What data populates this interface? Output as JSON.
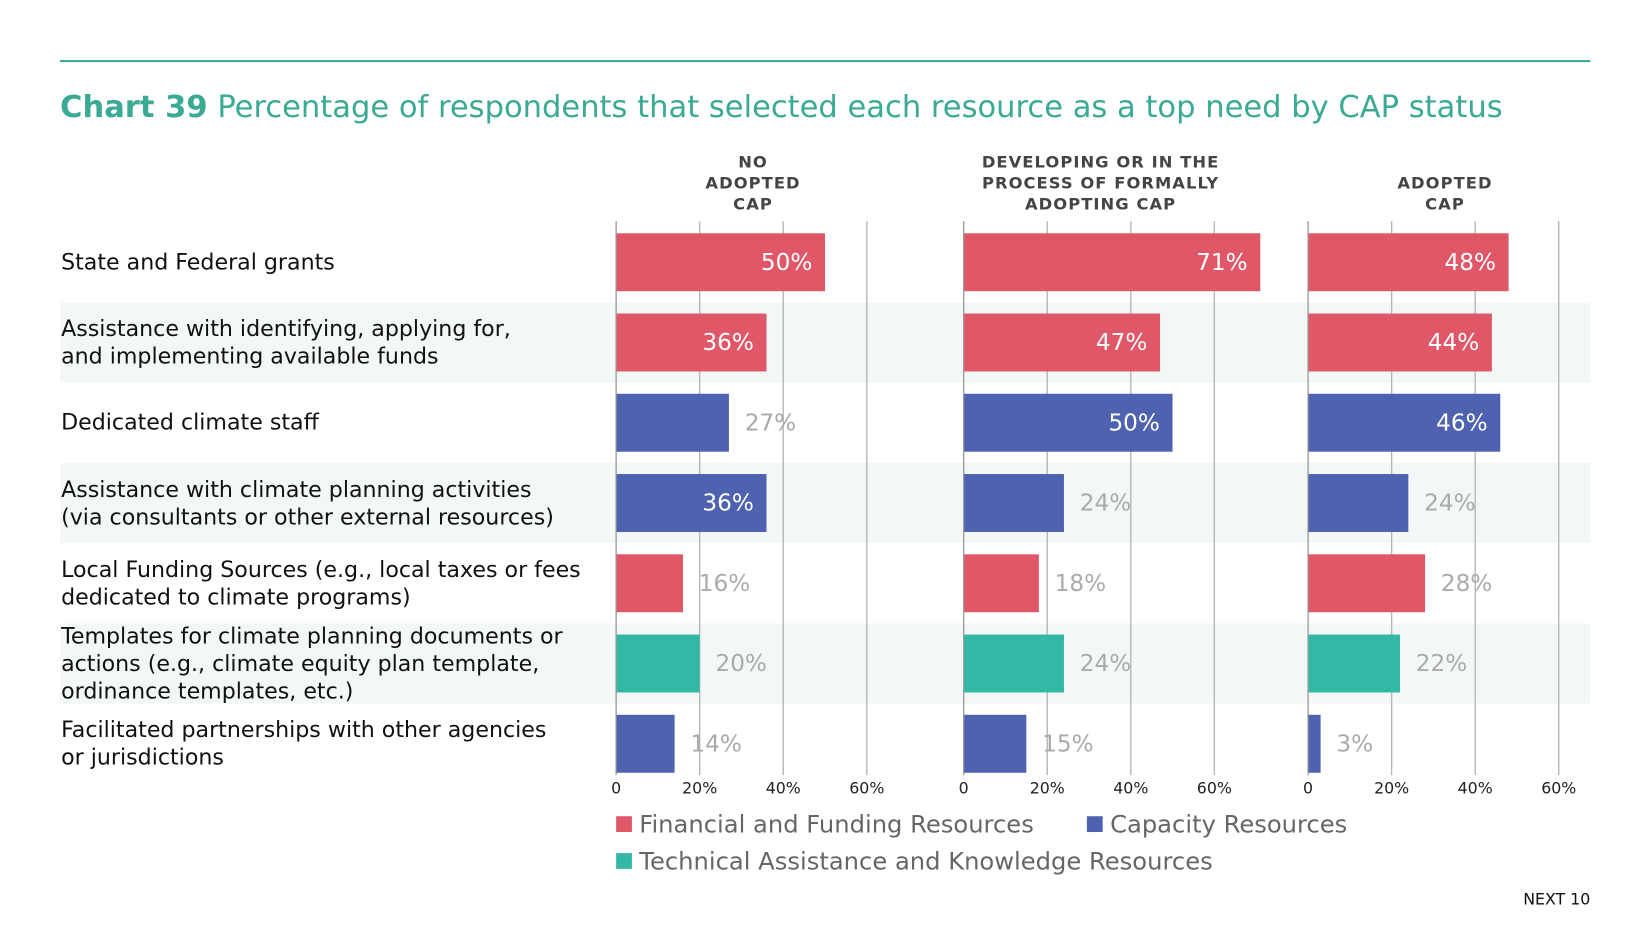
{
  "chart_data": {
    "type": "bar",
    "orientation": "horizontal",
    "title": "Chart 39",
    "subtitle": "Percentage of respondents that selected each resource as a top need by CAP status",
    "footer": "NEXT 10",
    "categories": [
      "State and Federal grants",
      "Assistance with identifying, applying for,\nand implementing available funds",
      "Dedicated climate staff",
      "Assistance with climate planning activities\n(via consultants or other external resources)",
      "Local Funding Sources (e.g., local taxes or fees\ndedicated to climate programs)",
      "Templates for climate planning documents or\nactions (e.g., climate equity plan template,\nordinance templates, etc.)",
      "Facilitated partnerships with other agencies\nor jurisdictions"
    ],
    "colors": [
      "#e05868",
      "#e05868",
      "#4e62b0",
      "#4e62b0",
      "#e05868",
      "#33b8a5",
      "#4e62b0"
    ],
    "legend": [
      {
        "name": "Financial and Funding Resources",
        "color": "#e05868"
      },
      {
        "name": "Capacity Resources",
        "color": "#4e62b0"
      },
      {
        "name": "Technical Assistance and Knowledge Resources",
        "color": "#33b8a5"
      }
    ],
    "panels": [
      {
        "name": "NO\nADOPTED\nCAP",
        "values": [
          50,
          36,
          27,
          36,
          16,
          20,
          14
        ],
        "value_labels": [
          "50%",
          "36%",
          "27%",
          "36%",
          "16%",
          "20%",
          "14%"
        ]
      },
      {
        "name": "DEVELOPING OR IN THE\nPROCESS OF FORMALLY\nADOPTING CAP",
        "values": [
          71,
          47,
          50,
          24,
          18,
          24,
          15
        ],
        "value_labels": [
          "71%",
          "47%",
          "50%",
          "24%",
          "18%",
          "24%",
          "15%"
        ]
      },
      {
        "name": "ADOPTED\nCAP",
        "values": [
          48,
          44,
          46,
          24,
          28,
          22,
          3
        ],
        "value_labels": [
          "48%",
          "44%",
          "46%",
          "24%",
          "28%",
          "22%",
          "3%"
        ]
      }
    ],
    "xlim": [
      0,
      60
    ],
    "xticks": [
      0,
      {
        "value": 20,
        "label": "20%"
      },
      {
        "value": 40,
        "label": "40%"
      },
      {
        "value": 60,
        "label": "60%"
      }
    ],
    "grid": true
  }
}
